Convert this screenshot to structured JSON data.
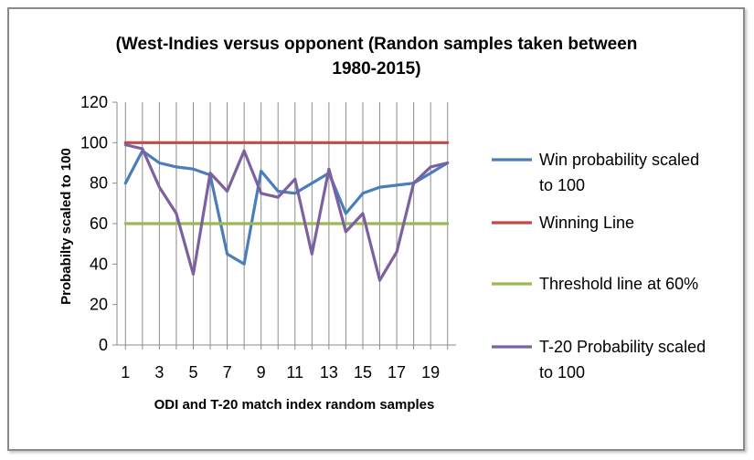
{
  "chart_data": {
    "type": "line",
    "title": "(West-Indies versus opponent (Randon samples taken between 1980-2015)",
    "title_lines": [
      "(West-Indies versus opponent (Randon samples taken between",
      "1980-2015)"
    ],
    "xlabel": "ODI  and T-20 match index random samples",
    "ylabel": "Probabilty scaled to 100",
    "x": [
      1,
      2,
      3,
      4,
      5,
      6,
      7,
      8,
      9,
      10,
      11,
      12,
      13,
      14,
      15,
      16,
      17,
      18,
      19,
      20
    ],
    "x_tick_labels": [
      "1",
      "3",
      "5",
      "7",
      "9",
      "11",
      "13",
      "15",
      "17",
      "19"
    ],
    "y_tick_labels": [
      "0",
      "20",
      "40",
      "60",
      "80",
      "100",
      "120"
    ],
    "ylim": [
      0,
      120
    ],
    "grid": "vertical",
    "legend_position": "right",
    "series": [
      {
        "name": "Win probability scaled to 100",
        "legend_lines": [
          "Win probability scaled",
          "to 100"
        ],
        "color": "#4a7ebb",
        "values": [
          80,
          96,
          90,
          88,
          87,
          84,
          45,
          40,
          86,
          76,
          75,
          80,
          85,
          65,
          75,
          78,
          79,
          80,
          85,
          90
        ]
      },
      {
        "name": "Winning Line",
        "legend_lines": [
          "Winning Line"
        ],
        "color": "#be4b48",
        "values": [
          100,
          100,
          100,
          100,
          100,
          100,
          100,
          100,
          100,
          100,
          100,
          100,
          100,
          100,
          100,
          100,
          100,
          100,
          100,
          100
        ]
      },
      {
        "name": "Threshold line at 60%",
        "legend_lines": [
          "Threshold line at 60%"
        ],
        "color": "#98b954",
        "values": [
          60,
          60,
          60,
          60,
          60,
          60,
          60,
          60,
          60,
          60,
          60,
          60,
          60,
          60,
          60,
          60,
          60,
          60,
          60,
          60
        ]
      },
      {
        "name": "T-20 Probability scaled to 100",
        "legend_lines": [
          "T-20 Probability scaled",
          "to 100"
        ],
        "color": "#7d60a0",
        "values": [
          99,
          97,
          78,
          65,
          35,
          85,
          76,
          96,
          75,
          73,
          82,
          45,
          87,
          56,
          65,
          32,
          46,
          80,
          88,
          90
        ]
      }
    ]
  }
}
